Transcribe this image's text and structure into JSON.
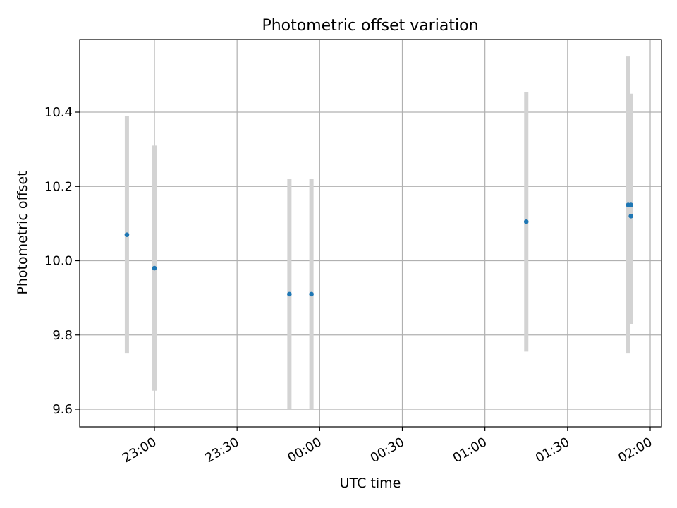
{
  "chart_data": {
    "type": "scatter",
    "title": "Photometric offset variation",
    "xlabel": "UTC time",
    "ylabel": "Photometric offset",
    "grid": true,
    "x_ticks": [
      "23:00",
      "23:30",
      "00:00",
      "00:30",
      "01:00",
      "01:30",
      "02:00"
    ],
    "y_ticks": [
      "9.6",
      "9.8",
      "10.0",
      "10.2",
      "10.4"
    ],
    "xlim": [
      "22:32",
      "02:00"
    ],
    "ylim": [
      9.55,
      10.59
    ],
    "error_bar_color": "#d3d3d3",
    "marker_color": "#1f77b4",
    "series": [
      {
        "points": [
          {
            "x": "22:50",
            "y": 10.07,
            "err": 0.32
          },
          {
            "x": "23:00",
            "y": 9.98,
            "err": 0.33
          },
          {
            "x": "23:49",
            "y": 9.91,
            "err": 0.31
          },
          {
            "x": "23:57",
            "y": 9.91,
            "err": 0.31
          },
          {
            "x": "01:15",
            "y": 10.105,
            "err": 0.35
          },
          {
            "x": "01:52",
            "y": 10.15,
            "err": 0.4
          },
          {
            "x": "01:53",
            "y": 10.12,
            "err": 0.29
          },
          {
            "x": "01:53",
            "y": 10.15,
            "err": 0.3
          }
        ]
      }
    ]
  }
}
